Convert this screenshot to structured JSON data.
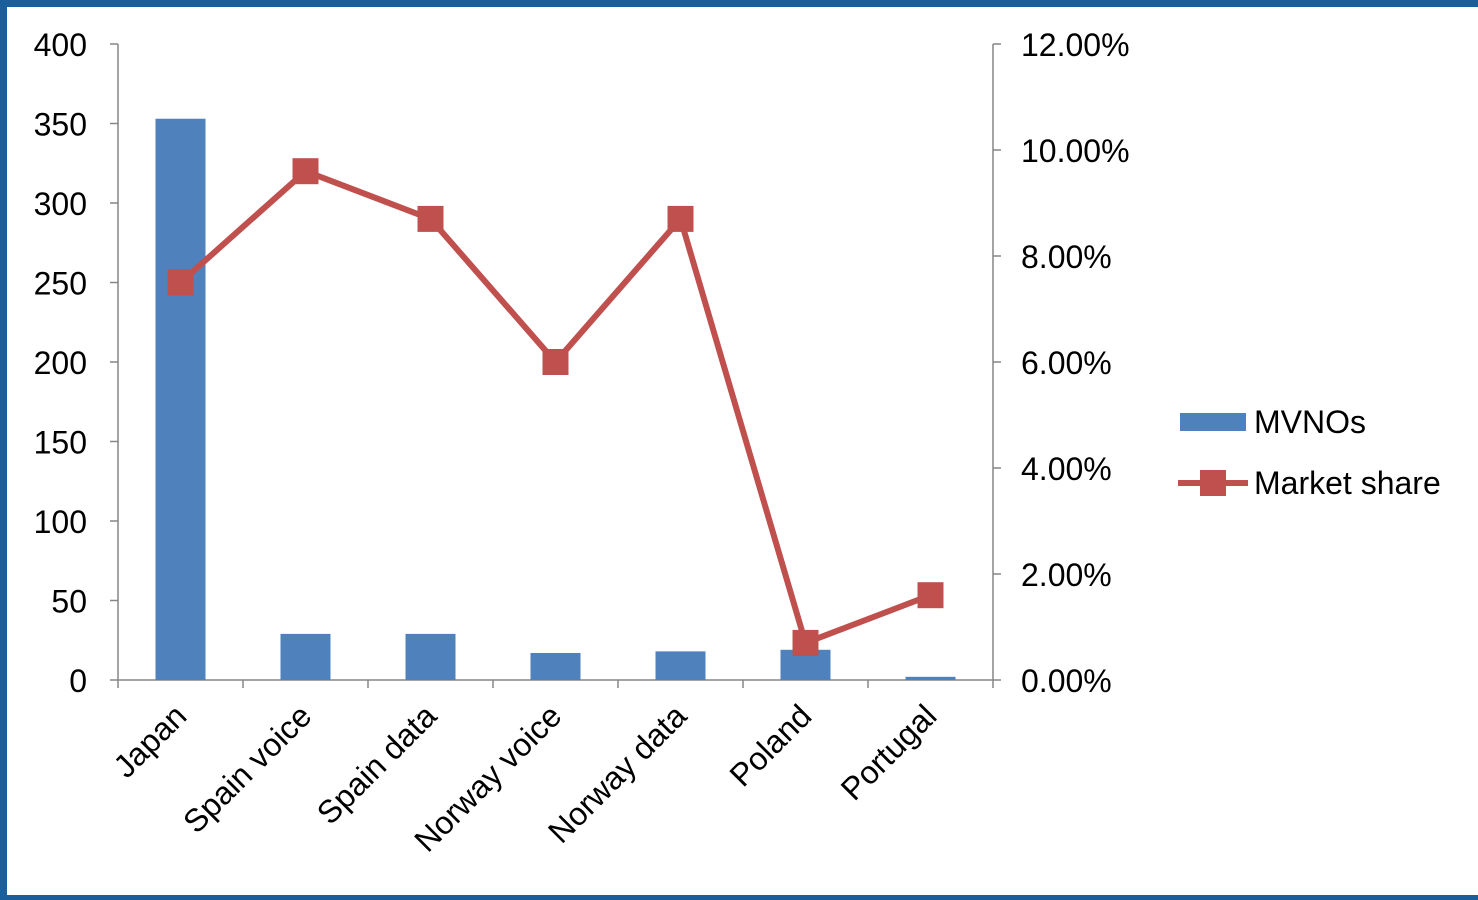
{
  "chart_data": {
    "type": "bar",
    "categories": [
      "Japan",
      "Spain voice",
      "Spain data",
      "Norway voice",
      "Norway data",
      "Poland",
      "Portugal"
    ],
    "series": [
      {
        "name": "MVNOs",
        "type": "bar",
        "axis": "left",
        "color": "#4f81bd",
        "values": [
          353,
          29,
          29,
          17,
          18,
          19,
          2
        ]
      },
      {
        "name": "Market share",
        "type": "line",
        "axis": "right",
        "color": "#c0504d",
        "values": [
          0.075,
          0.096,
          0.087,
          0.06,
          0.087,
          0.007,
          0.016
        ]
      }
    ],
    "y_left": {
      "min": 0,
      "max": 400,
      "step": 50,
      "tick_labels": [
        "0",
        "50",
        "100",
        "150",
        "200",
        "250",
        "300",
        "350",
        "400"
      ]
    },
    "y_right": {
      "min": 0,
      "max": 0.12,
      "step": 0.02,
      "tick_labels": [
        "0.00%",
        "2.00%",
        "4.00%",
        "6.00%",
        "8.00%",
        "10.00%",
        "12.00%"
      ]
    },
    "grid": false,
    "legend": {
      "position": "right",
      "entries": [
        {
          "label": "MVNOs",
          "marker": "bar"
        },
        {
          "label": "Market share",
          "marker": "line-square"
        }
      ]
    },
    "title": "",
    "xlabel": "",
    "ylabel": ""
  }
}
